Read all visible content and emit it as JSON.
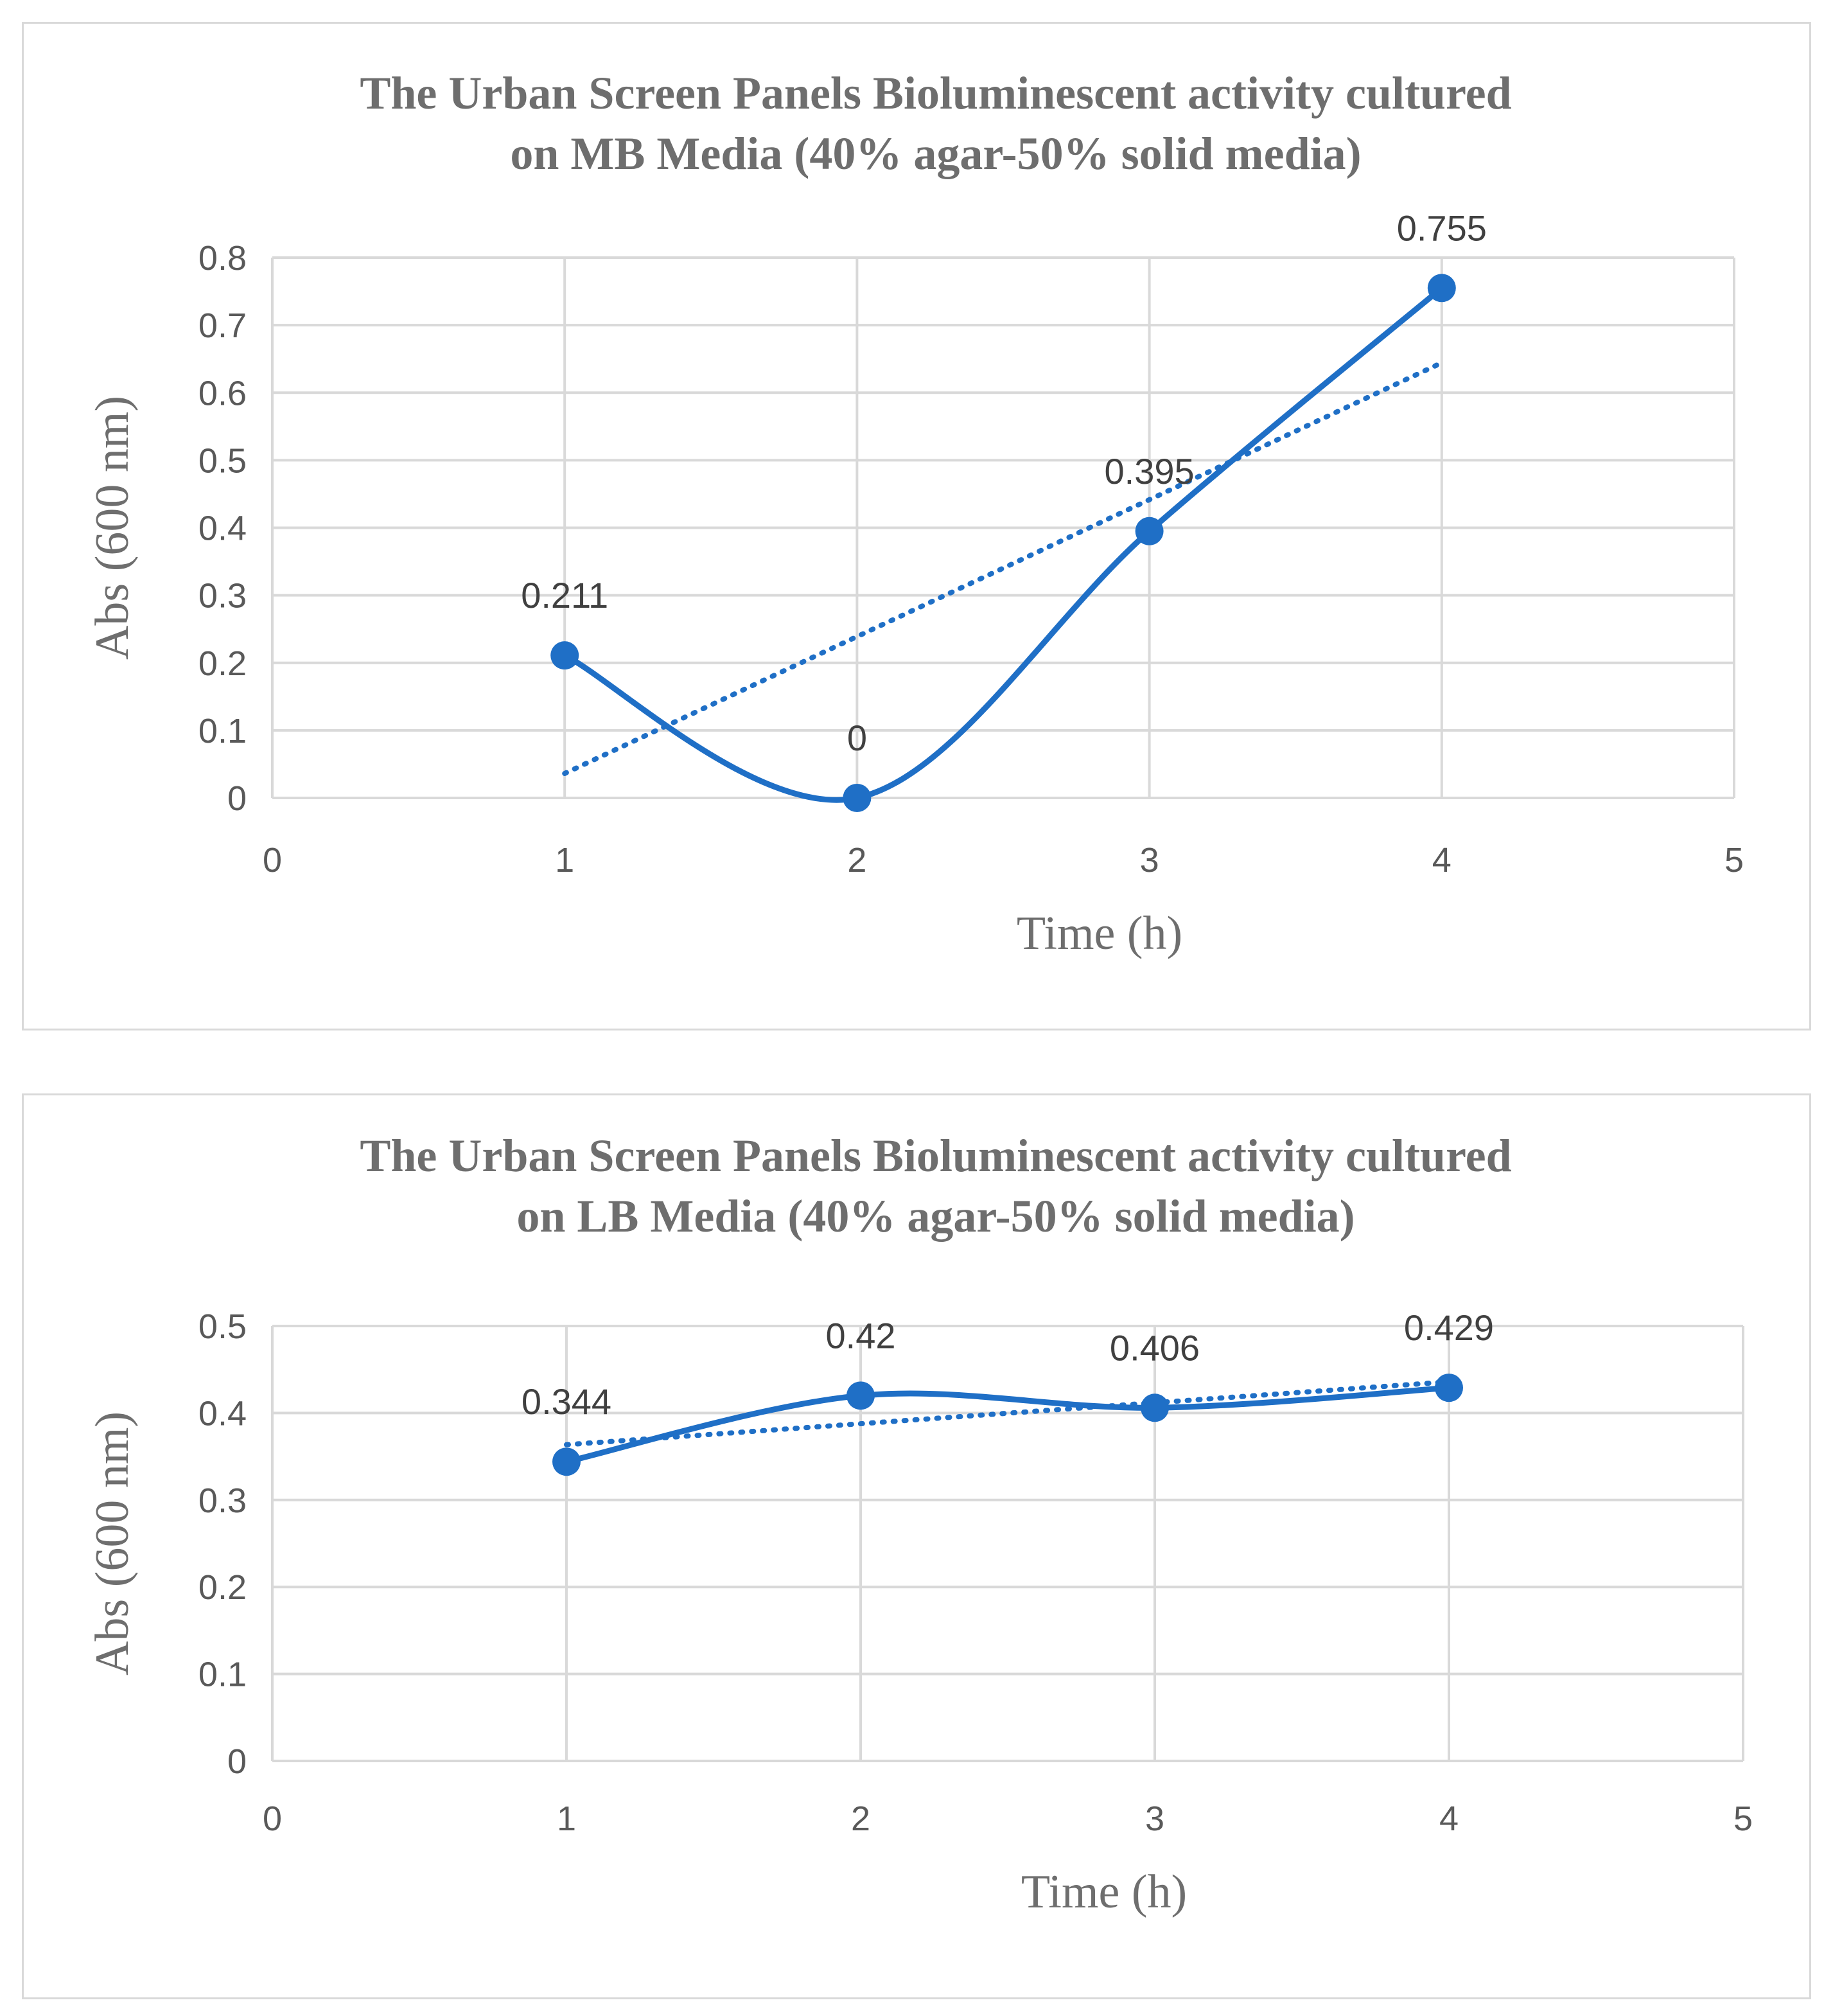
{
  "chart_data": [
    {
      "type": "line",
      "title_lines": [
        "The Urban Screen Panels Bioluminescent activity cultured",
        "on MB Media (40% agar-50% solid media)"
      ],
      "xlabel": "Time (h)",
      "ylabel": "Abs (600 nm)",
      "xlim": [
        0,
        5
      ],
      "ylim": [
        0,
        0.8
      ],
      "x_ticks": [
        "0",
        "1",
        "2",
        "3",
        "4",
        "5"
      ],
      "y_ticks": [
        "0",
        "0.1",
        "0.2",
        "0.3",
        "0.4",
        "0.5",
        "0.6",
        "0.7",
        "0.8"
      ],
      "grid": true,
      "series": [
        {
          "x": [
            1,
            2,
            3,
            4
          ],
          "values": [
            0.211,
            0,
            0.395,
            0.755
          ],
          "data_labels": [
            "0.211",
            "0",
            "0.395",
            "0.755"
          ],
          "smooth": true,
          "color": "#1f6fc6"
        }
      ],
      "trendline": {
        "type": "linear",
        "style": "dotted",
        "color": "#1f6fc6"
      }
    },
    {
      "type": "line",
      "title_lines": [
        "The Urban Screen Panels Bioluminescent activity cultured",
        "on LB Media (40% agar-50% solid media)"
      ],
      "xlabel": "Time (h)",
      "ylabel": "Abs (600 nm)",
      "xlim": [
        0,
        5
      ],
      "ylim": [
        0,
        0.5
      ],
      "x_ticks": [
        "0",
        "1",
        "2",
        "3",
        "4",
        "5"
      ],
      "y_ticks": [
        "0",
        "0.1",
        "0.2",
        "0.3",
        "0.4",
        "0.5"
      ],
      "grid": true,
      "series": [
        {
          "x": [
            1,
            2,
            3,
            4
          ],
          "values": [
            0.344,
            0.42,
            0.406,
            0.429
          ],
          "data_labels": [
            "0.344",
            "0.42",
            "0.406",
            "0.429"
          ],
          "smooth": true,
          "color": "#1f6fc6"
        }
      ],
      "trendline": {
        "type": "linear",
        "style": "dotted",
        "color": "#1f6fc6"
      }
    }
  ]
}
